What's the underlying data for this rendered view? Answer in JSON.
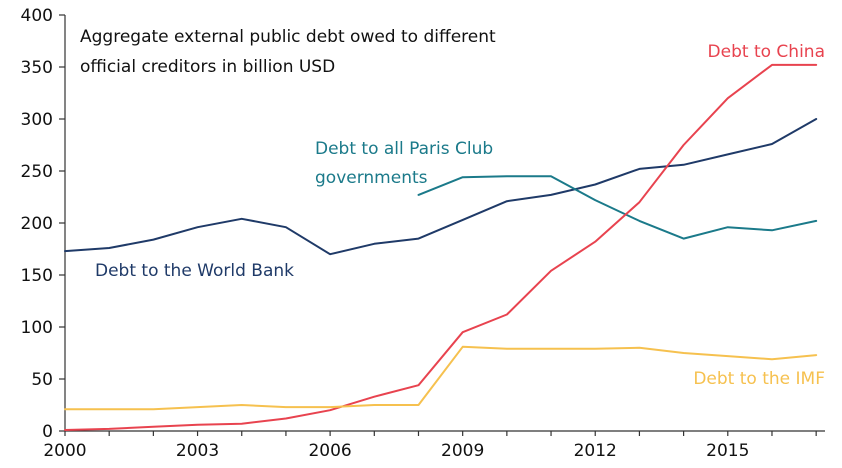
{
  "chart_data": {
    "type": "line",
    "annotation": [
      "Aggregate external public debt owed to different",
      "official creditors in billion USD"
    ],
    "x": [
      2000,
      2001,
      2002,
      2003,
      2004,
      2005,
      2006,
      2007,
      2008,
      2009,
      2010,
      2011,
      2012,
      2013,
      2014,
      2015,
      2016,
      2017
    ],
    "xlim": [
      2000,
      2017.2
    ],
    "ylim": [
      0,
      400
    ],
    "yticks": [
      0,
      50,
      100,
      150,
      200,
      250,
      300,
      350,
      400
    ],
    "xticks": [
      2000,
      2003,
      2006,
      2009,
      2012,
      2015
    ],
    "grid": false,
    "series": [
      {
        "name": "Debt to the World Bank",
        "label_lines": [
          "Debt to the World Bank"
        ],
        "color": "#1f3a68",
        "x": [
          2000,
          2001,
          2002,
          2003,
          2004,
          2005,
          2006,
          2007,
          2008,
          2009,
          2010,
          2011,
          2012,
          2013,
          2014,
          2015,
          2016,
          2017
        ],
        "values": [
          173,
          176,
          184,
          196,
          204,
          196,
          170,
          180,
          185,
          203,
          221,
          227,
          237,
          252,
          256,
          266,
          276,
          300
        ]
      },
      {
        "name": "Debt to all Paris Club governments",
        "label_lines": [
          "Debt to all Paris Club",
          "governments"
        ],
        "color": "#1b7a8a",
        "x": [
          2008,
          2009,
          2010,
          2011,
          2012,
          2013,
          2014,
          2015,
          2016,
          2017
        ],
        "values": [
          227,
          244,
          245,
          245,
          222,
          202,
          185,
          196,
          193,
          202
        ]
      },
      {
        "name": "Debt to China",
        "label_lines": [
          "Debt to China"
        ],
        "color": "#e8434f",
        "x": [
          2000,
          2001,
          2002,
          2003,
          2004,
          2005,
          2006,
          2007,
          2008,
          2009,
          2010,
          2011,
          2012,
          2013,
          2014,
          2015,
          2016,
          2017
        ],
        "values": [
          1,
          2,
          4,
          6,
          7,
          12,
          20,
          33,
          44,
          95,
          112,
          154,
          182,
          220,
          275,
          320,
          352,
          352
        ]
      },
      {
        "name": "Debt to the IMF",
        "label_lines": [
          "Debt to the IMF"
        ],
        "color": "#f6c14f",
        "x": [
          2000,
          2001,
          2002,
          2003,
          2004,
          2005,
          2006,
          2007,
          2008,
          2009,
          2010,
          2011,
          2012,
          2013,
          2014,
          2015,
          2016,
          2017
        ],
        "values": [
          21,
          21,
          21,
          23,
          25,
          23,
          23,
          25,
          25,
          81,
          79,
          79,
          79,
          80,
          75,
          72,
          69,
          73
        ]
      }
    ]
  }
}
